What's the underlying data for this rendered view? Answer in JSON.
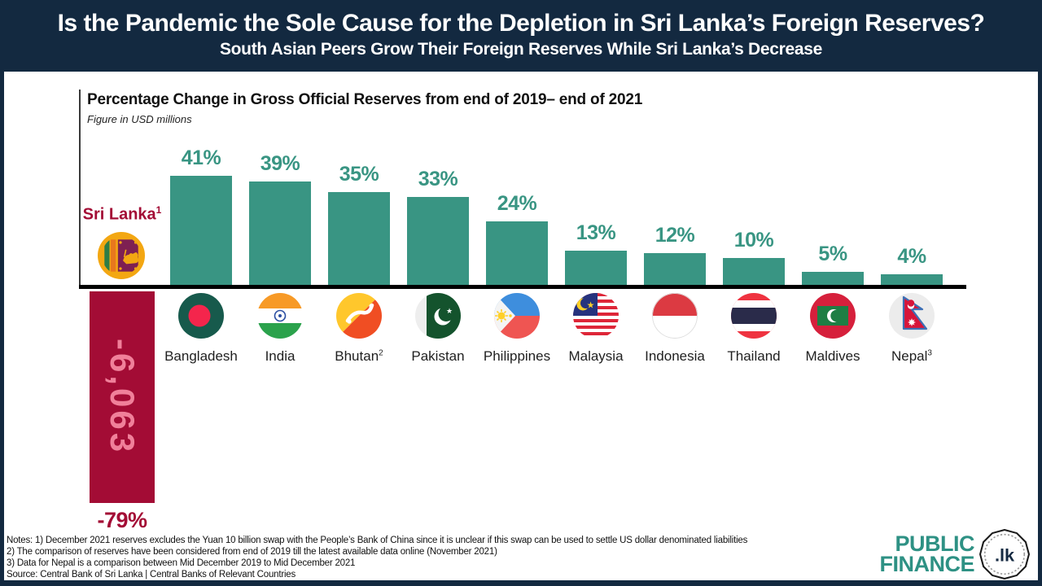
{
  "header": {
    "title": "Is the Pandemic the Sole Cause for the Depletion in Sri Lanka’s Foreign Reserves?",
    "subtitle": "South Asian Peers Grow Their Foreign Reserves While Sri Lanka’s Decrease"
  },
  "colors": {
    "navy": "#132940",
    "teal": "#399583",
    "crimson": "#A30C35",
    "pink": "#F0809A"
  },
  "chart_data": {
    "type": "bar",
    "title": "Percentage Change in Gross Official Reserves from end of 2019– end of 2021",
    "subtitle": "Figure in USD millions",
    "unit": "percent change",
    "ylim": [
      -79,
      45
    ],
    "grid": false,
    "legend": false,
    "bar_color": "#399583",
    "value_label_color": "#399583",
    "categories": [
      "Bangladesh",
      "India",
      "Bhutan",
      "Pakistan",
      "Philippines",
      "Malaysia",
      "Indonesia",
      "Thailand",
      "Maldives",
      "Nepal"
    ],
    "category_superscripts": [
      "",
      "",
      "2",
      "",
      "",
      "",
      "",
      "",
      "",
      "3"
    ],
    "flags": [
      "bangladesh",
      "india",
      "bhutan",
      "pakistan",
      "philippines",
      "malaysia",
      "indonesia",
      "thailand",
      "maldives",
      "nepal"
    ],
    "values": [
      41,
      39,
      35,
      33,
      24,
      13,
      12,
      10,
      5,
      4
    ],
    "value_labels": [
      "41%",
      "39%",
      "35%",
      "33%",
      "24%",
      "13%",
      "12%",
      "10%",
      "5%",
      "4%"
    ],
    "highlight": {
      "category": "Sri Lanka",
      "superscript": "1",
      "flag": "srilanka",
      "value": -79,
      "value_label": "-79%",
      "bar_value_label": "-6,063",
      "bar_color": "#A30C35",
      "bar_text_color": "#F0809A",
      "label_color": "#A30C35"
    }
  },
  "notes": {
    "lines": [
      "Notes:  1) December 2021 reserves excludes the Yuan 10 billion swap with the People’s Bank of China since it is unclear if this swap can be used to settle US dollar denominated liabilities",
      "2) The comparison of reserves have been considered from end of 2019 till the latest available data online (November 2021)",
      "3) Data for Nepal is a comparison between Mid December 2019 to Mid December 2021",
      "Source: Central Bank of Sri Lanka | Central Banks of Relevant Countries"
    ]
  },
  "logo": {
    "line1": "PUBLIC",
    "line2": "FINANCE",
    "badge": ".lk"
  }
}
